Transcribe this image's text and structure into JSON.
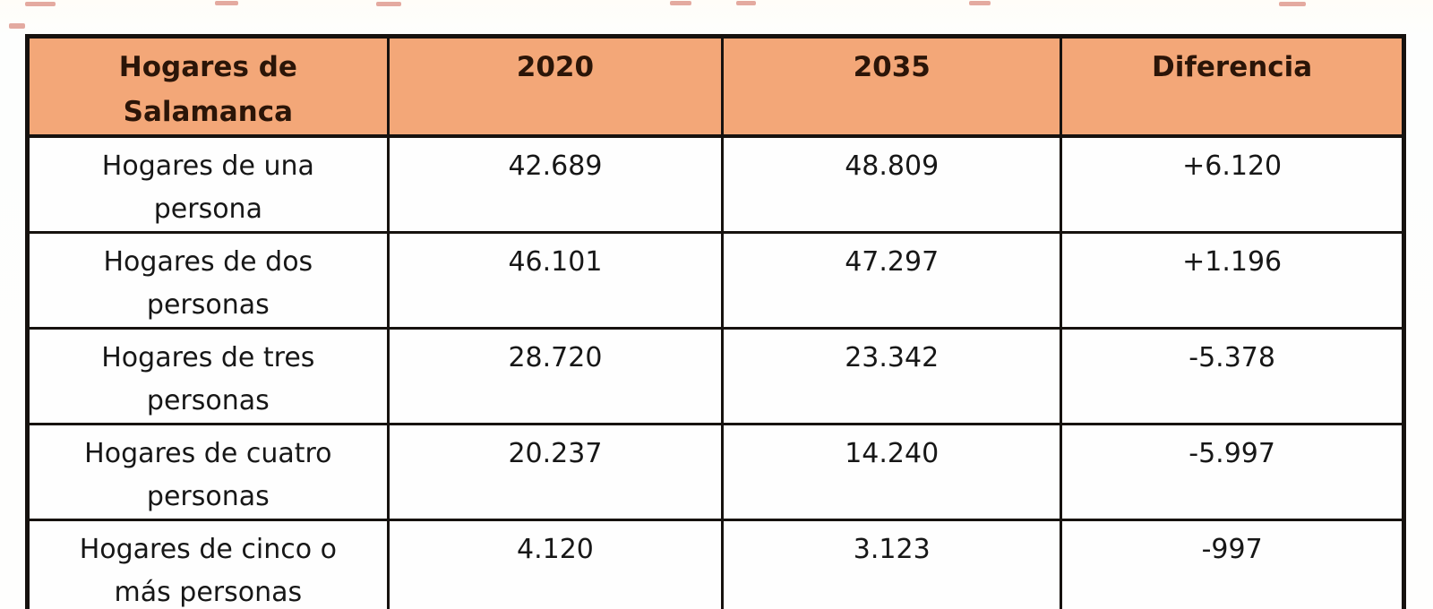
{
  "artifacts": {
    "color": "#c44434"
  },
  "table": {
    "columns": [
      {
        "label": "Hogares de\nSalamanca"
      },
      {
        "label": "2020"
      },
      {
        "label": "2035"
      },
      {
        "label": "Diferencia"
      }
    ],
    "rows": [
      {
        "label": "Hogares de una\npersona",
        "y2020": "42.689",
        "y2035": "48.809",
        "diff": "+6.120"
      },
      {
        "label": "Hogares de dos\npersonas",
        "y2020": "46.101",
        "y2035": "47.297",
        "diff": "+1.196"
      },
      {
        "label": "Hogares de tres\npersonas",
        "y2020": "28.720",
        "y2035": "23.342",
        "diff": "-5.378"
      },
      {
        "label": "Hogares de cuatro\npersonas",
        "y2020": "20.237",
        "y2035": "14.240",
        "diff": "-5.997"
      },
      {
        "label": "Hogares de cinco o\nmás personas",
        "y2020": "4.120",
        "y2035": "3.123",
        "diff": "-997"
      }
    ],
    "colors": {
      "header_bg": "#f3a778",
      "header_text": "#2b1508",
      "border": "#16120f",
      "body_text": "#171717"
    }
  },
  "chart_data": {
    "type": "table",
    "title": "Hogares de Salamanca",
    "columns": [
      "Hogares de Salamanca",
      "2020",
      "2035",
      "Diferencia"
    ],
    "rows": [
      [
        "Hogares de una persona",
        "42.689",
        "48.809",
        "+6.120"
      ],
      [
        "Hogares de dos personas",
        "46.101",
        "47.297",
        "+1.196"
      ],
      [
        "Hogares de tres personas",
        "28.720",
        "23.342",
        "-5.378"
      ],
      [
        "Hogares de cuatro personas",
        "20.237",
        "14.240",
        "-5.997"
      ],
      [
        "Hogares de cinco o más personas",
        "4.120",
        "3.123",
        "-997"
      ]
    ],
    "values_2020": [
      42689,
      46101,
      28720,
      20237,
      4120
    ],
    "values_2035": [
      48809,
      47297,
      23342,
      14240,
      3123
    ],
    "difference": [
      6120,
      1196,
      -5378,
      -5997,
      -997
    ]
  }
}
